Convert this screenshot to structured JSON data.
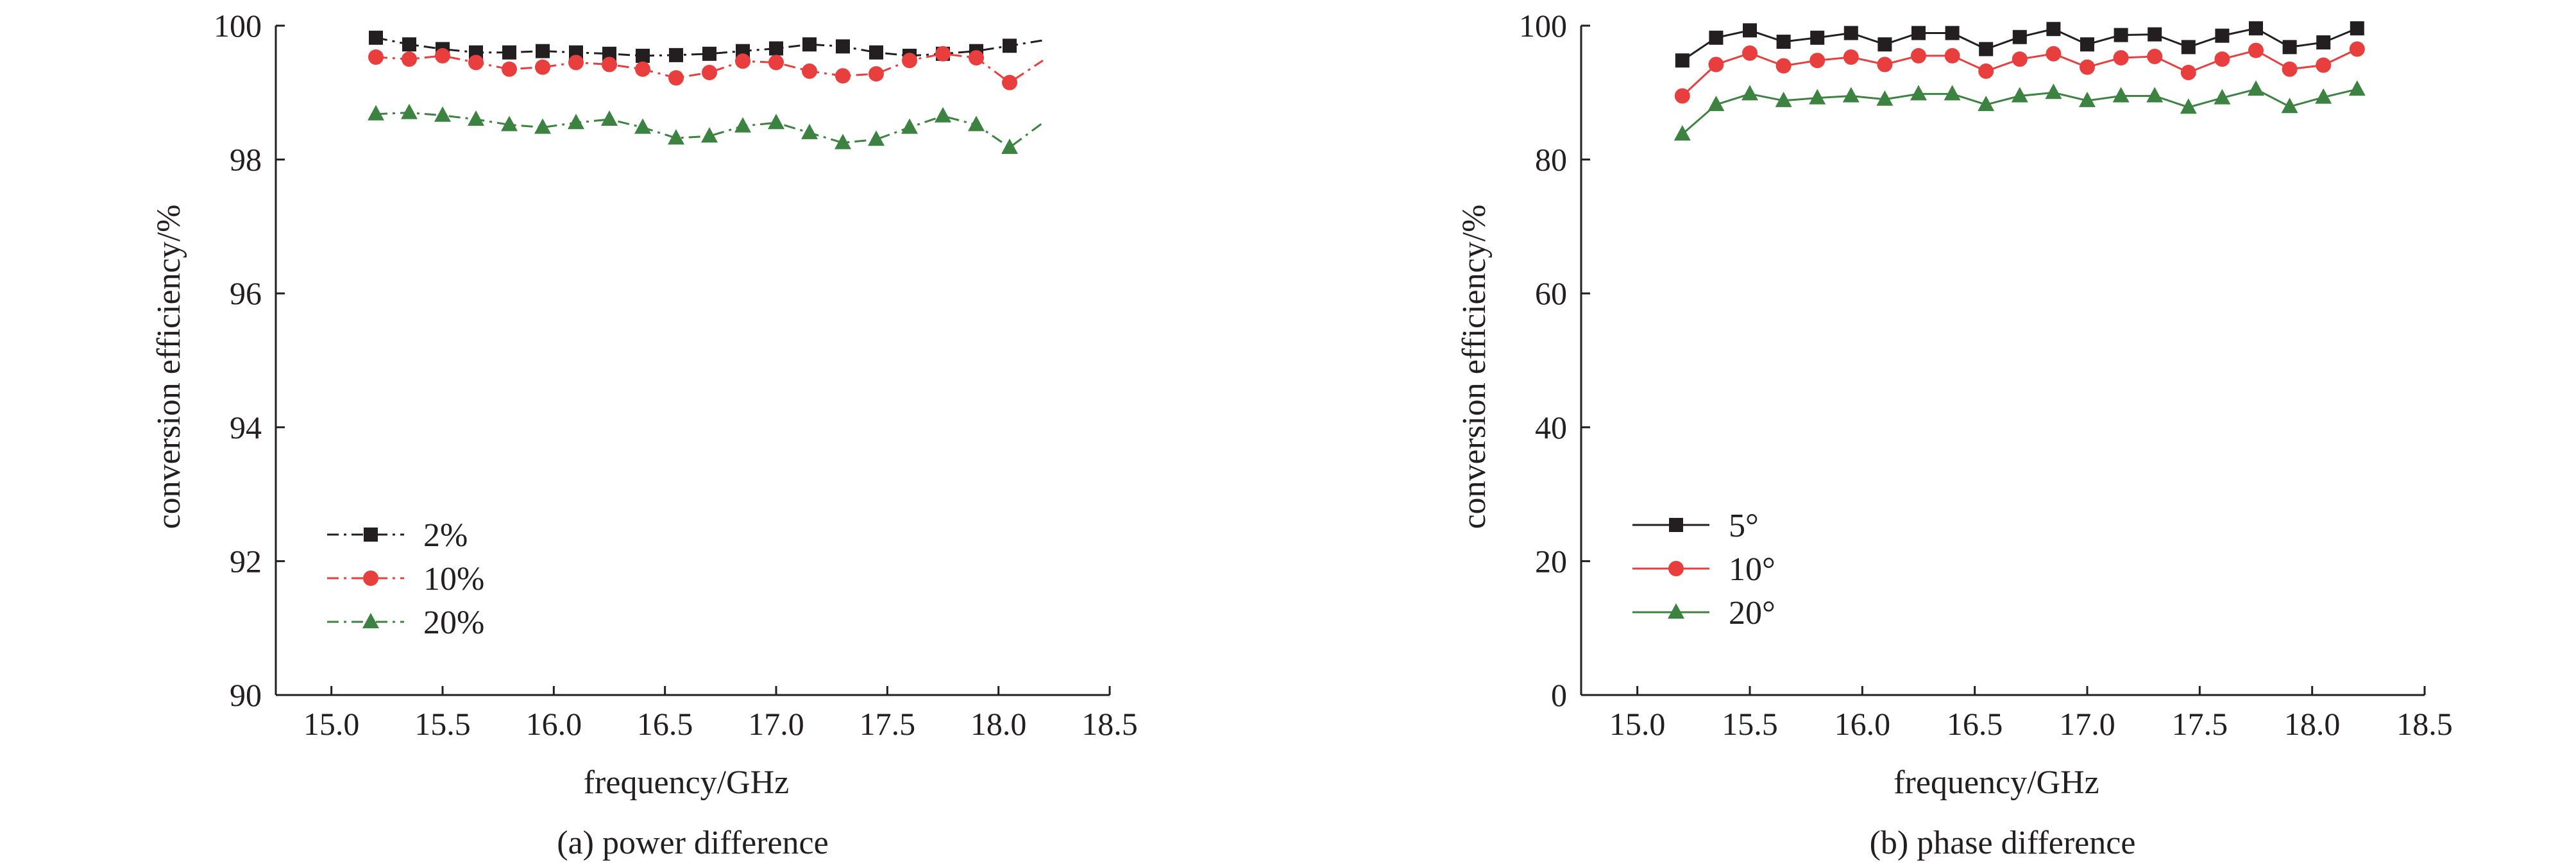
{
  "chart_data": [
    {
      "type": "line",
      "caption": "(a) power difference",
      "xlabel": "frequency/GHz",
      "ylabel": "conversion efficiency/%",
      "xlim": [
        14.75,
        18.5
      ],
      "ylim": [
        90,
        100
      ],
      "xticks": [
        "15.0",
        "15.5",
        "16.0",
        "16.5",
        "17.0",
        "17.5",
        "18.0",
        "18.5"
      ],
      "xtick_values": [
        15.0,
        15.5,
        16.0,
        16.5,
        17.0,
        17.5,
        18.0,
        18.5
      ],
      "yticks": [
        "90",
        "92",
        "94",
        "96",
        "98",
        "100"
      ],
      "ytick_values": [
        90,
        92,
        94,
        96,
        98,
        100
      ],
      "legend_position": "bottom-left",
      "line_style": "dash-dot",
      "series": [
        {
          "name": "2%",
          "color": "#231f20",
          "marker": "square",
          "x": [
            15.2,
            15.35,
            15.5,
            15.65,
            15.8,
            15.95,
            16.1,
            16.25,
            16.4,
            16.55,
            16.7,
            16.85,
            17.0,
            17.15,
            17.3,
            17.45,
            17.6,
            17.75,
            17.9,
            18.05,
            18.2
          ],
          "values": [
            99.82,
            99.72,
            99.65,
            99.6,
            99.6,
            99.62,
            99.6,
            99.58,
            99.55,
            99.56,
            99.58,
            99.62,
            99.66,
            99.72,
            99.69,
            99.6,
            99.55,
            99.58,
            99.62,
            99.7,
            99.78
          ],
          "marker_count": 20
        },
        {
          "name": "10%",
          "color": "#e83e3e",
          "marker": "circle",
          "x": [
            15.2,
            15.35,
            15.5,
            15.65,
            15.8,
            15.95,
            16.1,
            16.25,
            16.4,
            16.55,
            16.7,
            16.85,
            17.0,
            17.15,
            17.3,
            17.45,
            17.6,
            17.75,
            17.9,
            18.05,
            18.2
          ],
          "values": [
            99.53,
            99.5,
            99.55,
            99.45,
            99.35,
            99.38,
            99.45,
            99.42,
            99.35,
            99.22,
            99.3,
            99.47,
            99.45,
            99.32,
            99.25,
            99.28,
            99.48,
            99.58,
            99.52,
            99.15,
            99.48
          ],
          "marker_count": 20
        },
        {
          "name": "20%",
          "color": "#3c8341",
          "marker": "triangle",
          "x": [
            15.2,
            15.35,
            15.5,
            15.65,
            15.8,
            15.95,
            16.1,
            16.25,
            16.4,
            16.55,
            16.7,
            16.85,
            17.0,
            17.15,
            17.3,
            17.45,
            17.6,
            17.75,
            17.9,
            18.05,
            18.2
          ],
          "values": [
            98.68,
            98.7,
            98.66,
            98.6,
            98.52,
            98.48,
            98.55,
            98.6,
            98.48,
            98.32,
            98.35,
            98.5,
            98.55,
            98.4,
            98.25,
            98.3,
            98.48,
            98.65,
            98.52,
            98.18,
            98.55
          ],
          "marker_count": 20
        }
      ]
    },
    {
      "type": "line",
      "caption": "(b) phase difference",
      "xlabel": "frequency/GHz",
      "ylabel": "conversion efficiency/%",
      "xlim": [
        14.75,
        18.5
      ],
      "ylim": [
        0,
        100
      ],
      "xticks": [
        "15.0",
        "15.5",
        "16.0",
        "16.5",
        "17.0",
        "17.5",
        "18.0",
        "18.5"
      ],
      "xtick_values": [
        15.0,
        15.5,
        16.0,
        16.5,
        17.0,
        17.5,
        18.0,
        18.5
      ],
      "yticks": [
        "0",
        "20",
        "40",
        "60",
        "80",
        "100"
      ],
      "ytick_values": [
        0,
        20,
        40,
        60,
        80,
        100
      ],
      "legend_position": "bottom-left",
      "line_style": "solid",
      "series": [
        {
          "name": "5°",
          "color": "#231f20",
          "marker": "square",
          "x": [
            15.2,
            15.35,
            15.5,
            15.65,
            15.8,
            15.95,
            16.1,
            16.25,
            16.4,
            16.55,
            16.7,
            16.85,
            17.0,
            17.15,
            17.3,
            17.45,
            17.6,
            17.75,
            17.9,
            18.05,
            18.2
          ],
          "values": [
            94.8,
            98.2,
            99.3,
            97.6,
            98.2,
            98.9,
            97.2,
            98.9,
            98.9,
            96.5,
            98.3,
            99.5,
            97.2,
            98.6,
            98.7,
            96.8,
            98.5,
            99.6,
            96.8,
            97.5,
            99.6
          ],
          "marker_count": 21
        },
        {
          "name": "10°",
          "color": "#e83e3e",
          "marker": "circle",
          "x": [
            15.2,
            15.35,
            15.5,
            15.65,
            15.8,
            15.95,
            16.1,
            16.25,
            16.4,
            16.55,
            16.7,
            16.85,
            17.0,
            17.15,
            17.3,
            17.45,
            17.6,
            17.75,
            17.9,
            18.05,
            18.2
          ],
          "values": [
            89.5,
            94.2,
            95.9,
            94.0,
            94.8,
            95.3,
            94.2,
            95.5,
            95.5,
            93.2,
            95.0,
            95.8,
            93.8,
            95.2,
            95.4,
            93.0,
            95.0,
            96.3,
            93.5,
            94.1,
            96.5
          ],
          "marker_count": 21
        },
        {
          "name": "20°",
          "color": "#3c8341",
          "marker": "triangle",
          "x": [
            15.2,
            15.35,
            15.5,
            15.65,
            15.8,
            15.95,
            16.1,
            16.25,
            16.4,
            16.55,
            16.7,
            16.85,
            17.0,
            17.15,
            17.3,
            17.45,
            17.6,
            17.75,
            17.9,
            18.05,
            18.2
          ],
          "values": [
            83.8,
            88.2,
            89.8,
            88.8,
            89.2,
            89.5,
            89.0,
            89.8,
            89.8,
            88.2,
            89.5,
            90.0,
            88.8,
            89.5,
            89.5,
            87.8,
            89.2,
            90.5,
            87.9,
            89.3,
            90.5
          ],
          "marker_count": 21
        }
      ]
    }
  ]
}
